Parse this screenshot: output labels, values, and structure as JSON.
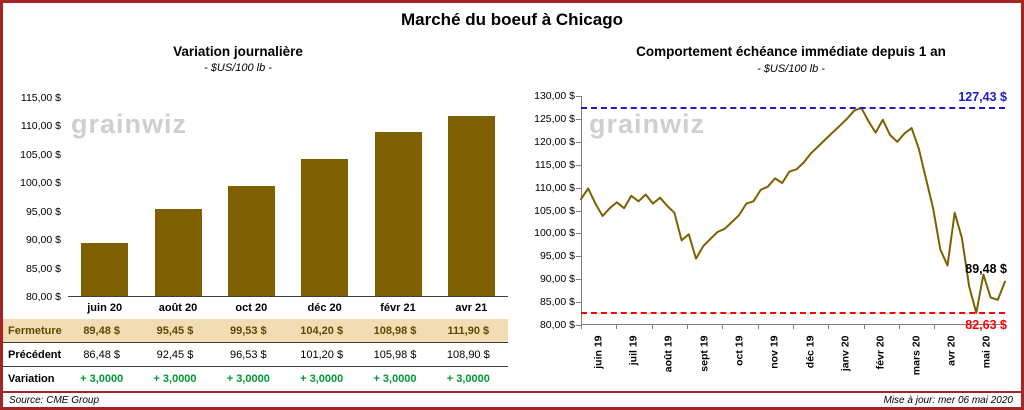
{
  "title": "Marché du boeuf à Chicago",
  "watermark": "grainwiz",
  "footer": {
    "source": "Source: CME Group",
    "updated": "Mise à jour: mer 06 mai 2020"
  },
  "colors": {
    "border": "#A32424",
    "bar": "#7F6000",
    "line": "#7F6000",
    "highlight_row_bg": "#F2DCB3",
    "gain_green": "#009933",
    "high_blue": "#1C1CC8",
    "low_red": "#FF0000",
    "watermark_gray": "#C7C7C7"
  },
  "table": {
    "rows": [
      {
        "key": "fermeture",
        "label": "Fermeture",
        "values": [
          "89,48 $",
          "95,45 $",
          "99,53 $",
          "104,20 $",
          "108,98 $",
          "111,90 $"
        ]
      },
      {
        "key": "precedent",
        "label": "Précédent",
        "values": [
          "86,48 $",
          "92,45 $",
          "96,53 $",
          "101,20 $",
          "105,98 $",
          "108,90 $"
        ]
      },
      {
        "key": "variation",
        "label": "Variation",
        "values": [
          "+ 3,0000",
          "+ 3,0000",
          "+ 3,0000",
          "+ 3,0000",
          "+ 3,0000",
          "+ 3,0000"
        ]
      }
    ]
  },
  "chart_data": [
    {
      "type": "bar",
      "title": "Variation journalière",
      "subtitle": "- $US/100 lb -",
      "categories": [
        "juin 20",
        "août 20",
        "oct 20",
        "déc 20",
        "févr 21",
        "avr 21"
      ],
      "values": [
        89.48,
        95.45,
        99.53,
        104.2,
        108.98,
        111.9
      ],
      "ylabel": "$US/100 lb",
      "ylim": [
        80,
        115
      ],
      "ytick_step": 5,
      "y_tick_labels": [
        "115,00 $",
        "110,00 $",
        "105,00 $",
        "100,00 $",
        "95,00 $",
        "90,00 $",
        "85,00 $",
        "80,00 $"
      ],
      "grid": false,
      "bar_color": "#7F6000"
    },
    {
      "type": "line",
      "title": "Comportement échéance immédiate depuis 1 an",
      "subtitle": "- $US/100 lb -",
      "x_labels": [
        "juin 19",
        "juil 19",
        "août 19",
        "sept 19",
        "oct 19",
        "nov 19",
        "déc 19",
        "janv 20",
        "févr 20",
        "mars 20",
        "avr 20",
        "mai 20"
      ],
      "values": [
        107.5,
        109.8,
        106.5,
        103.8,
        105.5,
        106.8,
        105.5,
        108.2,
        107.0,
        108.5,
        106.5,
        107.8,
        106.0,
        104.5,
        98.5,
        99.8,
        94.5,
        97.2,
        98.8,
        100.3,
        101.0,
        102.5,
        104.0,
        106.5,
        107.0,
        109.5,
        110.2,
        112.0,
        111.0,
        113.5,
        114.0,
        115.5,
        117.5,
        119.0,
        120.5,
        122.0,
        123.5,
        125.0,
        126.8,
        127.43,
        124.5,
        122.0,
        124.8,
        121.5,
        120.0,
        121.8,
        123.0,
        118.5,
        112.0,
        105.5,
        96.5,
        93.0,
        104.5,
        99.0,
        88.5,
        82.63,
        91.0,
        86.0,
        85.5,
        89.48
      ],
      "ylim": [
        80,
        130
      ],
      "ytick_step": 5,
      "y_tick_labels": [
        "130,00 $",
        "125,00 $",
        "120,00 $",
        "115,00 $",
        "110,00 $",
        "105,00 $",
        "100,00 $",
        "95,00 $",
        "90,00 $",
        "85,00 $",
        "80,00 $"
      ],
      "grid": false,
      "line_color": "#7F6000",
      "annotations": [
        {
          "name": "high",
          "label": "127,43 $",
          "value": 127.43,
          "color": "#1C1CC8",
          "line": true,
          "placement": "above"
        },
        {
          "name": "low",
          "label": "82,63 $",
          "value": 82.63,
          "color": "#FF0000",
          "line": true,
          "placement": "below"
        },
        {
          "name": "last",
          "label": "89,48 $",
          "value": 89.48,
          "color": "#000000",
          "line": false,
          "placement": "point"
        }
      ]
    }
  ]
}
